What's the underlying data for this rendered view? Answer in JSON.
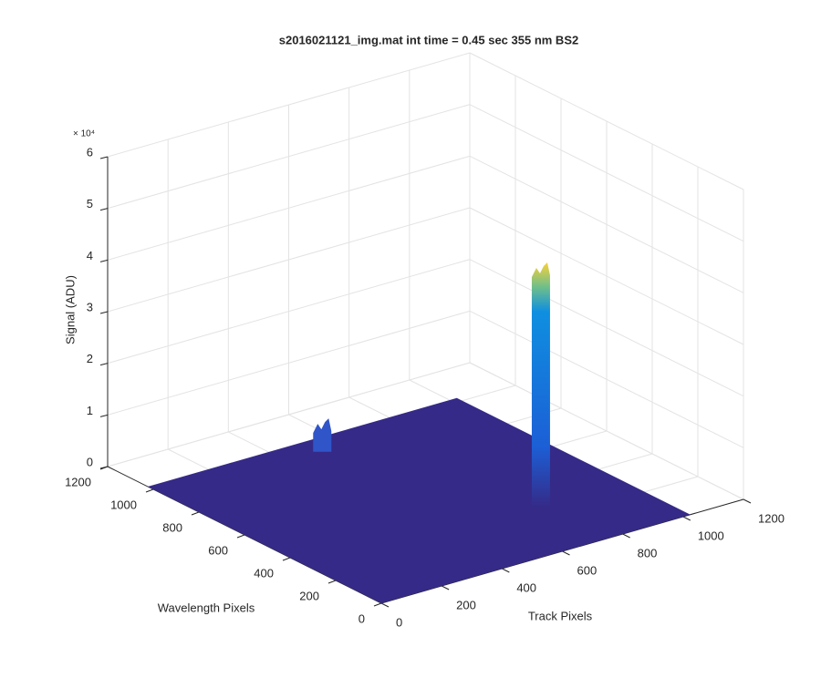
{
  "chart_data": {
    "type": "surface",
    "title": "s2016021121_img.mat int time = 0.45 sec  355 nm BS2",
    "x_label": "Track Pixels",
    "y_label": "Wavelength Pixels",
    "z_label": "Signal (ADU)",
    "z_exponent": "× 10⁴",
    "xlim": [
      0,
      1200
    ],
    "xticks": [
      0,
      200,
      400,
      600,
      800,
      1000,
      1200
    ],
    "ylim": [
      0,
      1200
    ],
    "yticks": [
      0,
      200,
      400,
      600,
      800,
      1000,
      1200
    ],
    "zlim": [
      0,
      60000
    ],
    "zticks": [
      {
        "value": 0,
        "label": "0"
      },
      {
        "value": 10000,
        "label": "1"
      },
      {
        "value": 20000,
        "label": "2"
      },
      {
        "value": 30000,
        "label": "3"
      },
      {
        "value": 40000,
        "label": "4"
      },
      {
        "value": 50000,
        "label": "5"
      },
      {
        "value": 60000,
        "label": "6"
      }
    ],
    "surface_x_extent": [
      0,
      1024
    ],
    "surface_y_extent": [
      0,
      1024
    ],
    "surface_color": "#352a87",
    "peaks": {
      "x": [
        560,
        785
      ],
      "y": [
        1000,
        339
      ],
      "z": [
        4000,
        45000
      ]
    },
    "grid": true
  }
}
